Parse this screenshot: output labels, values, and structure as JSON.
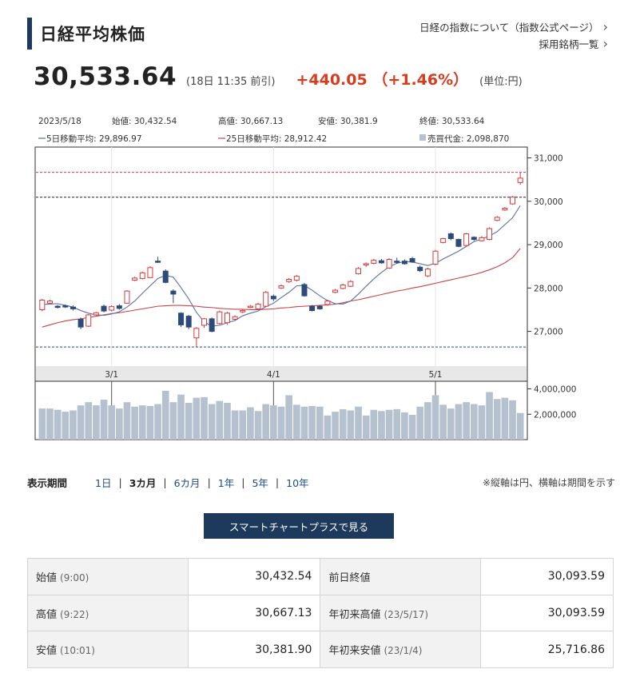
{
  "header": {
    "title": "日経平均株価",
    "links": [
      "日経の指数について（指数公式ページ）",
      "採用銘柄一覧"
    ]
  },
  "price": {
    "value": "30,533.64",
    "time": "(18日 11:35 前引)",
    "change": "+440.05 （+1.46%）",
    "unit": "(単位:円)"
  },
  "chart_info": {
    "date": "2023/5/18",
    "open": "始値: 30,432.54",
    "high": "高値: 30,667.13",
    "low": "安値: 30,381.9",
    "close": "終値: 30,533.64",
    "ma5": "5日移動平均: 29,896.97",
    "ma25": "25日移動平均: 28,912.42",
    "volume": "売買代金: 2,098,870"
  },
  "chart_data": {
    "type": "candlestick",
    "y_ticks": [
      "31,000",
      "30,000",
      "29,000",
      "28,000",
      "27,000"
    ],
    "y_tick_values": [
      31000,
      30000,
      29000,
      28000,
      27000
    ],
    "ylim": [
      26200,
      31250
    ],
    "vol_ticks": [
      "4,000,000",
      "2,000,000"
    ],
    "vol_tick_values": [
      4000000,
      2000000
    ],
    "vol_lim": [
      0,
      4600000
    ],
    "x_labels": [
      {
        "label": "3/1",
        "index": 9
      },
      {
        "label": "4/1",
        "index": 30
      },
      {
        "label": "5/1",
        "index": 51
      }
    ],
    "ref_lines": {
      "high": 30667,
      "prev_close": 30093,
      "low": 26640
    },
    "candles": [
      {
        "o": 27500,
        "c": 27720,
        "h": 27750,
        "l": 27460
      },
      {
        "o": 27650,
        "c": 27700,
        "h": 27730,
        "l": 27620
      },
      {
        "o": 27580,
        "c": 27560,
        "h": 27610,
        "l": 27530
      },
      {
        "o": 27590,
        "c": 27570,
        "h": 27620,
        "l": 27540
      },
      {
        "o": 27560,
        "c": 27520,
        "h": 27600,
        "l": 27480
      },
      {
        "o": 27280,
        "c": 27100,
        "h": 27320,
        "l": 27050
      },
      {
        "o": 27120,
        "c": 27380,
        "h": 27400,
        "l": 27100
      },
      {
        "o": 27380,
        "c": 27430,
        "h": 27450,
        "l": 27350
      },
      {
        "o": 27580,
        "c": 27470,
        "h": 27620,
        "l": 27440
      },
      {
        "o": 27490,
        "c": 27570,
        "h": 27600,
        "l": 27460
      },
      {
        "o": 27590,
        "c": 27530,
        "h": 27630,
        "l": 27500
      },
      {
        "o": 27650,
        "c": 27930,
        "h": 27950,
        "l": 27640
      },
      {
        "o": 28180,
        "c": 28230,
        "h": 28260,
        "l": 28160
      },
      {
        "o": 28220,
        "c": 28350,
        "h": 28380,
        "l": 28200
      },
      {
        "o": 28240,
        "c": 28470,
        "h": 28500,
        "l": 28230
      },
      {
        "o": 28620,
        "c": 28600,
        "h": 28720,
        "l": 28580
      },
      {
        "o": 28390,
        "c": 28130,
        "h": 28430,
        "l": 28110
      },
      {
        "o": 27930,
        "c": 27860,
        "h": 27970,
        "l": 27650
      },
      {
        "o": 27420,
        "c": 27150,
        "h": 27440,
        "l": 27100
      },
      {
        "o": 27350,
        "c": 27100,
        "h": 27380,
        "l": 27050
      },
      {
        "o": 26850,
        "c": 27070,
        "h": 27100,
        "l": 26640
      },
      {
        "o": 27140,
        "c": 27290,
        "h": 27310,
        "l": 27080
      },
      {
        "o": 27290,
        "c": 27000,
        "h": 27320,
        "l": 26980
      },
      {
        "o": 27180,
        "c": 27450,
        "h": 27480,
        "l": 27160
      },
      {
        "o": 27200,
        "c": 27420,
        "h": 27450,
        "l": 27150
      },
      {
        "o": 27280,
        "c": 27340,
        "h": 27370,
        "l": 27250
      },
      {
        "o": 27450,
        "c": 27480,
        "h": 27510,
        "l": 27420
      },
      {
        "o": 27560,
        "c": 27580,
        "h": 27610,
        "l": 27540
      },
      {
        "o": 27520,
        "c": 27630,
        "h": 27660,
        "l": 27500
      },
      {
        "o": 27580,
        "c": 27900,
        "h": 27930,
        "l": 27560
      },
      {
        "o": 27810,
        "c": 27750,
        "h": 27850,
        "l": 27700
      },
      {
        "o": 28000,
        "c": 28050,
        "h": 28080,
        "l": 27980
      },
      {
        "o": 28150,
        "c": 28200,
        "h": 28230,
        "l": 28120
      },
      {
        "o": 28180,
        "c": 28270,
        "h": 28300,
        "l": 28150
      },
      {
        "o": 28080,
        "c": 27820,
        "h": 28120,
        "l": 27800
      },
      {
        "o": 27580,
        "c": 27480,
        "h": 27610,
        "l": 27460
      },
      {
        "o": 27580,
        "c": 27520,
        "h": 27610,
        "l": 27500
      },
      {
        "o": 27620,
        "c": 27700,
        "h": 27730,
        "l": 27590
      },
      {
        "o": 27900,
        "c": 27950,
        "h": 27980,
        "l": 27880
      },
      {
        "o": 27990,
        "c": 28070,
        "h": 28100,
        "l": 27970
      },
      {
        "o": 28040,
        "c": 28150,
        "h": 28180,
        "l": 28020
      },
      {
        "o": 28330,
        "c": 28450,
        "h": 28480,
        "l": 28310
      },
      {
        "o": 28540,
        "c": 28560,
        "h": 28590,
        "l": 28480
      },
      {
        "o": 28570,
        "c": 28640,
        "h": 28670,
        "l": 28550
      },
      {
        "o": 28630,
        "c": 28580,
        "h": 28670,
        "l": 28560
      },
      {
        "o": 28460,
        "c": 28660,
        "h": 28690,
        "l": 28440
      },
      {
        "o": 28620,
        "c": 28590,
        "h": 28700,
        "l": 28560
      },
      {
        "o": 28620,
        "c": 28560,
        "h": 28660,
        "l": 28540
      },
      {
        "o": 28680,
        "c": 28600,
        "h": 28720,
        "l": 28580
      },
      {
        "o": 28480,
        "c": 28400,
        "h": 28520,
        "l": 28370
      },
      {
        "o": 28280,
        "c": 28440,
        "h": 28470,
        "l": 28250
      },
      {
        "o": 28550,
        "c": 28850,
        "h": 28880,
        "l": 28520
      },
      {
        "o": 29050,
        "c": 29140,
        "h": 29160,
        "l": 29030
      },
      {
        "o": 29250,
        "c": 29140,
        "h": 29280,
        "l": 29100
      },
      {
        "o": 29120,
        "c": 28960,
        "h": 29140,
        "l": 28940
      },
      {
        "o": 28980,
        "c": 29250,
        "h": 29270,
        "l": 28960
      },
      {
        "o": 29170,
        "c": 29120,
        "h": 29190,
        "l": 29090
      },
      {
        "o": 29090,
        "c": 29160,
        "h": 29200,
        "l": 29070
      },
      {
        "o": 29120,
        "c": 29370,
        "h": 29400,
        "l": 29100
      },
      {
        "o": 29560,
        "c": 29630,
        "h": 29660,
        "l": 29540
      },
      {
        "o": 29800,
        "c": 29840,
        "h": 29870,
        "l": 29780
      },
      {
        "o": 29940,
        "c": 30100,
        "h": 30120,
        "l": 29920
      },
      {
        "o": 30432,
        "c": 30534,
        "h": 30667,
        "l": 30382
      }
    ],
    "ma5": [
      27620,
      27630,
      27640,
      27600,
      27560,
      27480,
      27420,
      27380,
      27370,
      27400,
      27450,
      27560,
      27700,
      27880,
      28050,
      28220,
      28290,
      28250,
      28010,
      27750,
      27440,
      27220,
      27120,
      27140,
      27200,
      27250,
      27360,
      27420,
      27470,
      27570,
      27650,
      27780,
      27900,
      28050,
      28060,
      27950,
      27820,
      27710,
      27640,
      27630,
      27700,
      27860,
      28040,
      28210,
      28360,
      28490,
      28570,
      28610,
      28600,
      28560,
      28520,
      28570,
      28670,
      28760,
      28850,
      28960,
      29070,
      29130,
      29200,
      29300,
      29460,
      29620,
      29900
    ],
    "ma25": [
      27100,
      27150,
      27200,
      27240,
      27270,
      27290,
      27320,
      27350,
      27380,
      27410,
      27430,
      27460,
      27490,
      27520,
      27550,
      27580,
      27590,
      27600,
      27600,
      27590,
      27580,
      27560,
      27550,
      27530,
      27520,
      27510,
      27510,
      27500,
      27500,
      27510,
      27520,
      27540,
      27550,
      27570,
      27580,
      27590,
      27600,
      27610,
      27630,
      27660,
      27700,
      27730,
      27770,
      27810,
      27850,
      27890,
      27930,
      27960,
      28000,
      28030,
      28070,
      28110,
      28150,
      28190,
      28230,
      28270,
      28310,
      28360,
      28420,
      28490,
      28580,
      28700,
      28912
    ],
    "volume": [
      2450000,
      2450000,
      2350000,
      2200000,
      2300000,
      2700000,
      2950000,
      2700000,
      3150000,
      2700000,
      2450000,
      2950000,
      2600000,
      2700000,
      2650000,
      2800000,
      3850000,
      2950000,
      3550000,
      2900000,
      3300000,
      3350000,
      2800000,
      3050000,
      2900000,
      2300000,
      2300000,
      2550000,
      2250000,
      2800000,
      2700000,
      2600000,
      3500000,
      2750000,
      2600000,
      2650000,
      2600000,
      1900000,
      2200000,
      2400000,
      2300000,
      2600000,
      1900000,
      2350000,
      2250000,
      2350000,
      2400000,
      2150000,
      1950000,
      2600000,
      2950000,
      3500000,
      2750000,
      2450000,
      2800000,
      2950000,
      2800000,
      2700000,
      3750000,
      3200000,
      3300000,
      3100000,
      2098870
    ]
  },
  "period": {
    "label": "表示期間",
    "options": [
      "1日",
      "3カ月",
      "6カ月",
      "1年",
      "5年",
      "10年"
    ],
    "active": "3カ月",
    "note": "※縦軸は円、横軸は期間を示す"
  },
  "smart_button": "スマートチャートプラスで見る",
  "stats": [
    {
      "label": "始値",
      "sub": "(9:00)",
      "value": "30,432.54",
      "label2": "前日終値",
      "sub2": "",
      "value2": "30,093.59"
    },
    {
      "label": "高値",
      "sub": "(9:22)",
      "value": "30,667.13",
      "label2": "年初来高値",
      "sub2": "(23/5/17)",
      "value2": "30,093.59"
    },
    {
      "label": "安値",
      "sub": "(10:01)",
      "value": "30,381.90",
      "label2": "年初来安値",
      "sub2": "(23/1/4)",
      "value2": "25,716.86"
    }
  ],
  "colors": {
    "accent": "#1d3a5c",
    "up": "#d83b1e",
    "candle_up": "#d83b3b",
    "candle_down": "#2c4a7a",
    "ma5": "#5a6fa8",
    "ma25": "#c9434b",
    "volume": "#b5c1cf"
  }
}
